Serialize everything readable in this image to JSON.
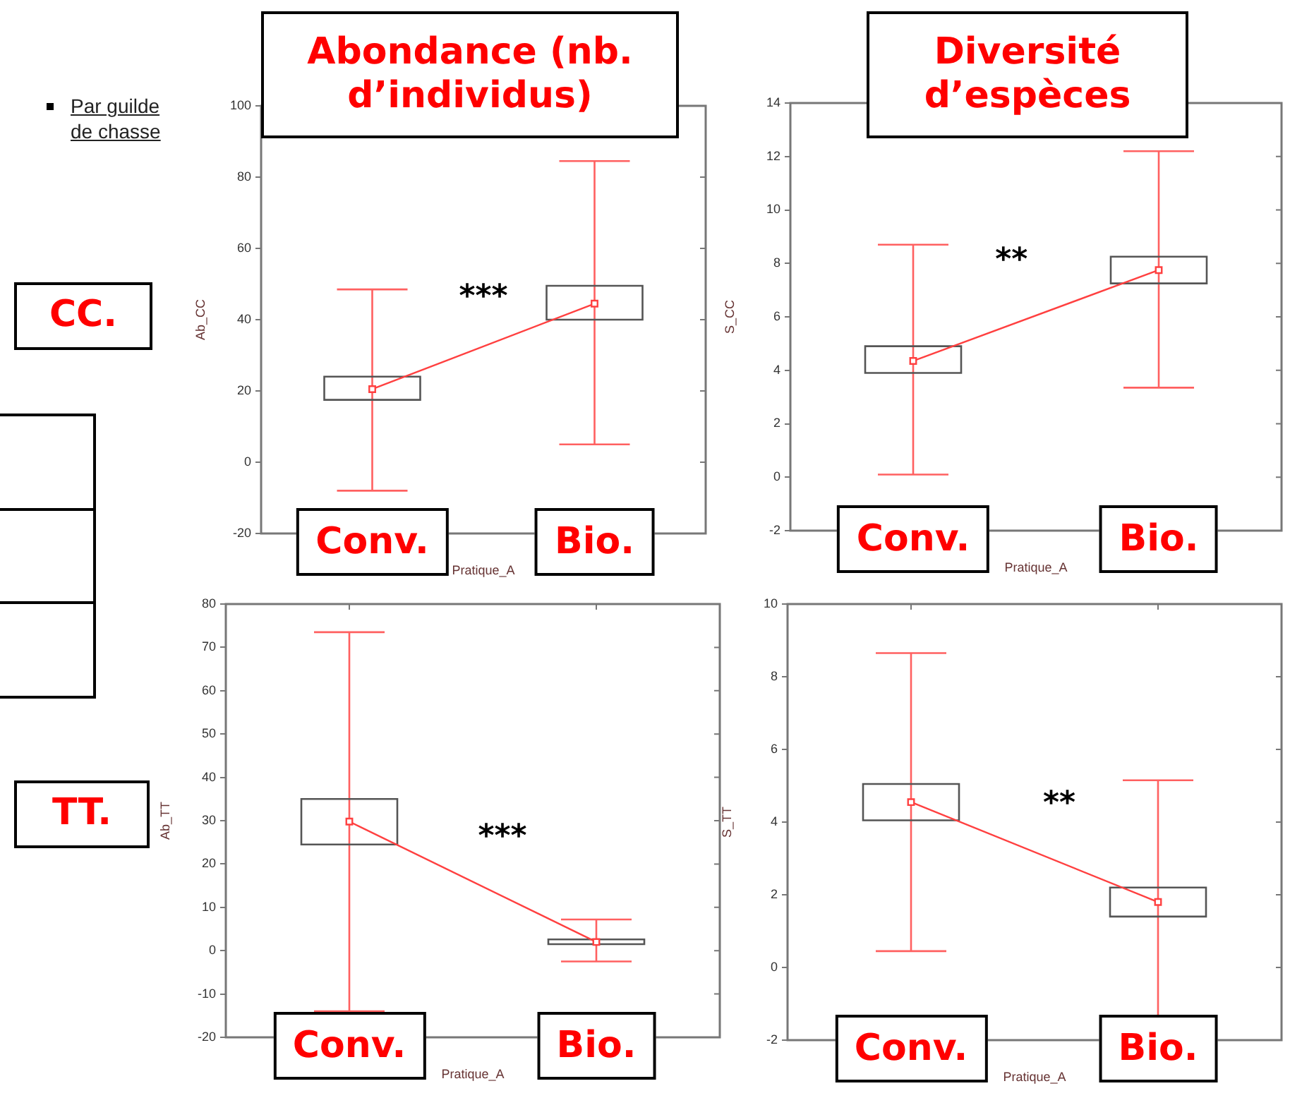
{
  "chart_data": [
    {
      "type": "box",
      "title": "Abondance (nb. d’individus)",
      "xlabel": "Pratique_A",
      "ylabel": "Ab_CC",
      "categories": [
        "Conv.",
        "Bio."
      ],
      "ylim": [
        -20,
        100
      ],
      "yticks": [
        -20,
        0,
        20,
        40,
        60,
        80,
        100
      ],
      "grid": false,
      "annotations": [
        "***",
        "CC.",
        "Par guilde de chasse"
      ],
      "series": [
        {
          "type": "box",
          "color": "#555555",
          "boxes": [
            {
              "low": -8,
              "q1": 17.5,
              "median": 20.5,
              "q3": 24,
              "high": 48.5
            },
            {
              "low": 5,
              "q1": 40,
              "median": 44.5,
              "q3": 49.5,
              "high": 84.5
            }
          ]
        },
        {
          "type": "line",
          "color": "#ff4040",
          "values": [
            20.5,
            44.5
          ]
        }
      ]
    },
    {
      "type": "box",
      "title": "Diversité d’espèces",
      "xlabel": "Pratique_A",
      "ylabel": "S_CC",
      "categories": [
        "Conv.",
        "Bio."
      ],
      "ylim": [
        -2,
        14
      ],
      "yticks": [
        -2,
        0,
        2,
        4,
        6,
        8,
        10,
        12,
        14
      ],
      "grid": false,
      "annotations": [
        "**"
      ],
      "series": [
        {
          "type": "box",
          "color": "#555555",
          "boxes": [
            {
              "low": 0.1,
              "q1": 3.9,
              "median": 4.35,
              "q3": 4.9,
              "high": 8.7
            },
            {
              "low": 3.35,
              "q1": 7.25,
              "median": 7.75,
              "q3": 8.25,
              "high": 12.2
            }
          ]
        },
        {
          "type": "line",
          "color": "#ff4040",
          "values": [
            4.35,
            7.75
          ]
        }
      ]
    },
    {
      "type": "box",
      "xlabel": "Pratique_A",
      "ylabel": "Ab_TT",
      "categories": [
        "Conv.",
        "Bio."
      ],
      "ylim": [
        -20,
        80
      ],
      "yticks": [
        -20,
        -10,
        0,
        10,
        20,
        30,
        40,
        50,
        60,
        70,
        80
      ],
      "grid": false,
      "annotations": [
        "***",
        "TT."
      ],
      "series": [
        {
          "type": "box",
          "color": "#555555",
          "boxes": [
            {
              "low": -14,
              "q1": 24.5,
              "median": 29.8,
              "q3": 35,
              "high": 73.5
            },
            {
              "low": -2.5,
              "q1": 1.5,
              "median": 2,
              "q3": 2.6,
              "high": 7.2
            }
          ]
        },
        {
          "type": "line",
          "color": "#ff4040",
          "values": [
            29.8,
            2
          ]
        }
      ]
    },
    {
      "type": "box",
      "xlabel": "Pratique_A",
      "ylabel": "S_TT",
      "categories": [
        "Conv.",
        "Bio."
      ],
      "ylim": [
        -2,
        10
      ],
      "yticks": [
        -2,
        0,
        2,
        4,
        6,
        8,
        10
      ],
      "grid": false,
      "annotations": [
        "**"
      ],
      "series": [
        {
          "type": "box",
          "color": "#555555",
          "boxes": [
            {
              "low": 0.45,
              "q1": 4.05,
              "median": 4.55,
              "q3": 5.05,
              "high": 8.65
            },
            {
              "low": -1.5,
              "q1": 1.4,
              "median": 1.8,
              "q3": 2.2,
              "high": 5.15
            }
          ]
        },
        {
          "type": "line",
          "color": "#ff4040",
          "values": [
            4.55,
            1.8
          ]
        }
      ]
    }
  ]
}
